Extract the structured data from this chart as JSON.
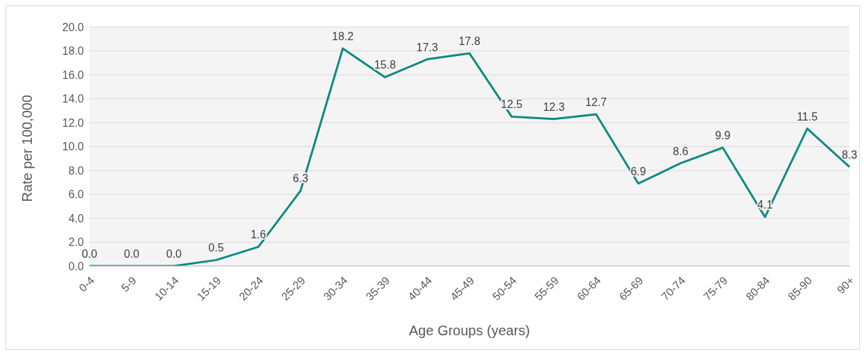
{
  "chart_data": {
    "type": "line",
    "xlabel": "Age Groups (years)",
    "ylabel": "Rate per 100,000",
    "categories": [
      "0-4",
      "5-9",
      "10-14",
      "15-19",
      "20-24",
      "25-29",
      "30-34",
      "35-39",
      "40-44",
      "45-49",
      "50-54",
      "55-59",
      "60-64",
      "65-69",
      "70-74",
      "75-79",
      "80-84",
      "85-90",
      "90+"
    ],
    "series": [
      {
        "color": "#0e8a80",
        "values": [
          0,
          0,
          0,
          0.5,
          1.6,
          6.3,
          18.2,
          15.8,
          17.3,
          17.8,
          12.5,
          12.3,
          12.7,
          6.9,
          8.6,
          9.9,
          4.1,
          11.5,
          8.3
        ],
        "value_labels": [
          "0.0",
          "0.0",
          "0.0",
          "0.5",
          "1.6",
          "6.3",
          "18.2",
          "15.8",
          "17.3",
          "17.8",
          "12.5",
          "12.3",
          "12.7",
          "6.9",
          "8.6",
          "9.9",
          "4.1",
          "11.5",
          "8.3"
        ]
      }
    ],
    "ylim": [
      0,
      20
    ],
    "yticks": [
      {
        "value": 0,
        "label": "0.0"
      },
      {
        "value": 2,
        "label": "2.0"
      },
      {
        "value": 4,
        "label": "4.0"
      },
      {
        "value": 6,
        "label": "6.0"
      },
      {
        "value": 8,
        "label": "8.0"
      },
      {
        "value": 10,
        "label": "10.0"
      },
      {
        "value": 12,
        "label": "12.0"
      },
      {
        "value": 14,
        "label": "14.0"
      },
      {
        "value": 16,
        "label": "16.0"
      },
      {
        "value": 18,
        "label": "18.0"
      },
      {
        "value": 20,
        "label": "20.0"
      }
    ],
    "grid": "y",
    "legend": false,
    "line_style": "solid"
  }
}
